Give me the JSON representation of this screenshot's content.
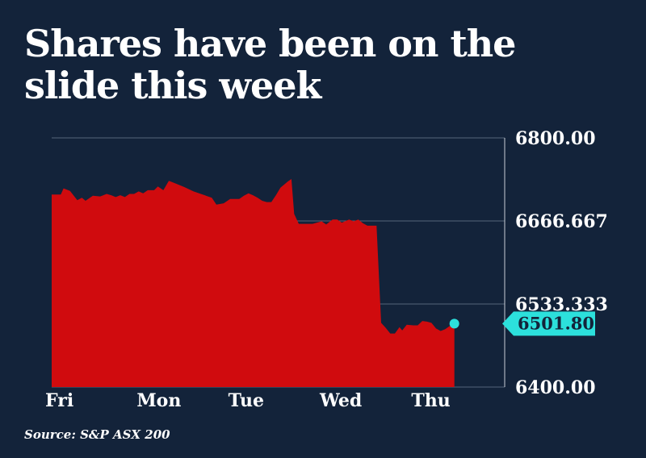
{
  "title": "Shares have been on the slide this week",
  "source": "Source: S&P ASX 200",
  "colors": {
    "background": "#13233a",
    "area": "#d00b0e",
    "highlight": "#2ce0dc",
    "grid": "#56657a",
    "axis": "#c8ced6"
  },
  "chart_data": {
    "type": "area",
    "title": "Shares have been on the slide this week",
    "xlabel": "",
    "ylabel": "",
    "ylim": [
      6400,
      6800
    ],
    "y_ticks": [
      "6800.00",
      "6666.667",
      "6533.333",
      "6400.00"
    ],
    "y_tick_values": [
      6800,
      6666.667,
      6533.333,
      6400
    ],
    "x_tick_labels": [
      "Fri",
      "Mon",
      "Tue",
      "Wed",
      "Thu"
    ],
    "x_tick_positions": [
      0,
      1,
      2,
      3,
      4
    ],
    "x_range": [
      0,
      4.95
    ],
    "grid": true,
    "last_value_label": "6501.80",
    "last_value": 6501.8,
    "series": [
      {
        "values": [
          [
            0.0,
            6709
          ],
          [
            0.1,
            6709
          ],
          [
            0.13,
            6719
          ],
          [
            0.2,
            6715
          ],
          [
            0.28,
            6700
          ],
          [
            0.33,
            6704
          ],
          [
            0.37,
            6699
          ],
          [
            0.45,
            6707
          ],
          [
            0.53,
            6706
          ],
          [
            0.6,
            6710
          ],
          [
            0.65,
            6708
          ],
          [
            0.7,
            6705
          ],
          [
            0.75,
            6708
          ],
          [
            0.8,
            6705
          ],
          [
            0.85,
            6710
          ],
          [
            0.9,
            6710
          ],
          [
            0.95,
            6714
          ],
          [
            1.0,
            6711
          ],
          [
            1.05,
            6716
          ],
          [
            1.12,
            6716
          ],
          [
            1.16,
            6722
          ],
          [
            1.22,
            6716
          ],
          [
            1.28,
            6731
          ],
          [
            1.35,
            6727
          ],
          [
            1.45,
            6721
          ],
          [
            1.55,
            6714
          ],
          [
            1.65,
            6709
          ],
          [
            1.75,
            6704
          ],
          [
            1.8,
            6693
          ],
          [
            1.88,
            6695
          ],
          [
            1.95,
            6702
          ],
          [
            2.05,
            6702
          ],
          [
            2.1,
            6707
          ],
          [
            2.15,
            6711
          ],
          [
            2.2,
            6708
          ],
          [
            2.25,
            6704
          ],
          [
            2.3,
            6699
          ],
          [
            2.35,
            6697
          ],
          [
            2.4,
            6697
          ],
          [
            2.45,
            6708
          ],
          [
            2.5,
            6720
          ],
          [
            2.58,
            6730
          ],
          [
            2.62,
            6734
          ],
          [
            2.65,
            6678
          ],
          [
            2.7,
            6662
          ],
          [
            2.78,
            6662
          ],
          [
            2.85,
            6662
          ],
          [
            2.95,
            6666
          ],
          [
            3.0,
            6661
          ],
          [
            3.07,
            6669
          ],
          [
            3.12,
            6669
          ],
          [
            3.17,
            6664
          ],
          [
            3.25,
            6669
          ],
          [
            3.3,
            6666
          ],
          [
            3.35,
            6669
          ],
          [
            3.4,
            6663
          ],
          [
            3.45,
            6659
          ],
          [
            3.5,
            6659
          ],
          [
            3.55,
            6659
          ],
          [
            3.6,
            6503
          ],
          [
            3.65,
            6495
          ],
          [
            3.7,
            6486
          ],
          [
            3.75,
            6486
          ],
          [
            3.8,
            6496
          ],
          [
            3.83,
            6491
          ],
          [
            3.88,
            6500
          ],
          [
            3.95,
            6499
          ],
          [
            4.0,
            6499
          ],
          [
            4.05,
            6506
          ],
          [
            4.1,
            6505
          ],
          [
            4.15,
            6503
          ],
          [
            4.2,
            6494
          ],
          [
            4.25,
            6490
          ],
          [
            4.3,
            6493
          ],
          [
            4.35,
            6498
          ],
          [
            4.38,
            6497
          ],
          [
            4.4,
            6502
          ]
        ]
      }
    ]
  }
}
